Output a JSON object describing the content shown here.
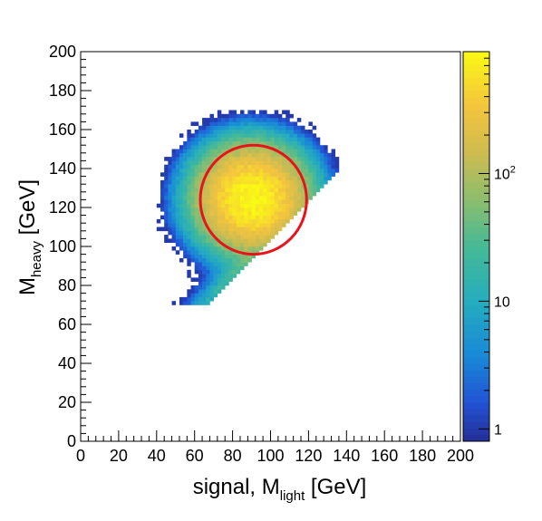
{
  "chart_data": {
    "type": "heatmap",
    "title": "",
    "xlabel": {
      "main": "signal, M",
      "sub": "light",
      "unit": " [GeV]"
    },
    "ylabel": {
      "main": "M",
      "sub": "heavy",
      "unit": " [GeV]"
    },
    "xlim": [
      0,
      200
    ],
    "ylim": [
      0,
      200
    ],
    "x_ticks": [
      0,
      20,
      40,
      60,
      80,
      100,
      120,
      140,
      160,
      180,
      200
    ],
    "y_ticks": [
      0,
      20,
      40,
      60,
      80,
      100,
      120,
      140,
      160,
      180,
      200
    ],
    "x_tick_labels": [
      "0",
      "20",
      "40",
      "60",
      "80",
      "100",
      "120",
      "140",
      "160",
      "180",
      "200"
    ],
    "y_tick_labels": [
      "0",
      "20",
      "40",
      "60",
      "80",
      "100",
      "120",
      "140",
      "160",
      "180",
      "200"
    ],
    "bin_width": 2,
    "colorbar": {
      "scale": "log",
      "range": [
        0.8,
        900
      ],
      "ticks": [
        {
          "value": 1,
          "label": "1"
        },
        {
          "value": 10,
          "label": "10"
        },
        {
          "value": 100,
          "label": "10",
          "sup": "2"
        }
      ]
    },
    "distribution": {
      "description": "2D event counts, peak near (90, 125)",
      "peak_x": 90,
      "peak_y": 125,
      "peak_count": 900,
      "sigma_x": 13,
      "sigma_y": 12,
      "lower_cut_line": "y > x + 4",
      "upper_edge_y": 165,
      "lower_edge_y": 78
    },
    "signal_region": {
      "shape": "circle",
      "center": [
        91,
        124
      ],
      "radius": 28,
      "color": "#e8141c"
    },
    "palette": "viridis-like (blue to yellow)"
  }
}
